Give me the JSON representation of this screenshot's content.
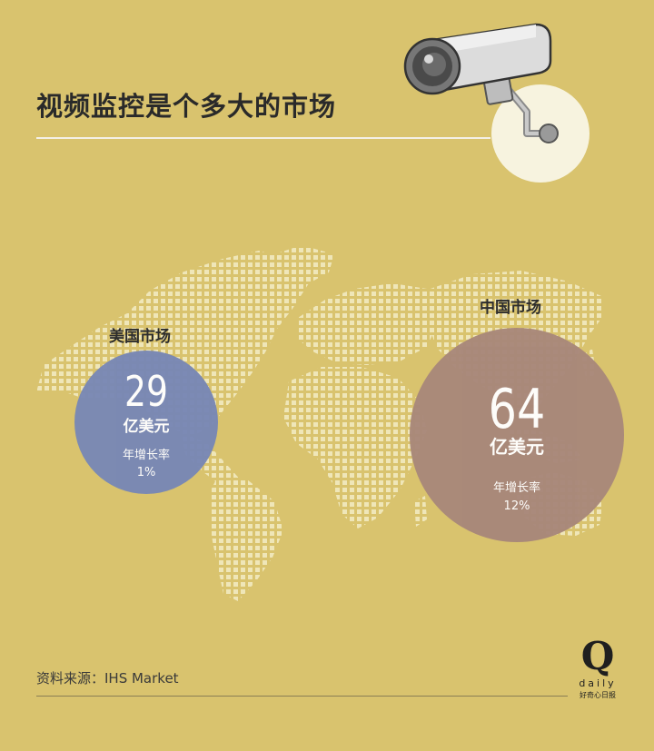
{
  "header": {
    "title": "视频监控是个多大的市场"
  },
  "markets": [
    {
      "id": "us",
      "region_label": "美国市场",
      "value": "29",
      "unit": "亿美元",
      "growth_label": "年增长率",
      "growth_rate": "1%",
      "color": "#7887b5"
    },
    {
      "id": "cn",
      "region_label": "中国市场",
      "value": "64",
      "unit": "亿美元",
      "growth_label": "年增长率",
      "growth_rate": "12%",
      "color": "#a8877a"
    }
  ],
  "footer": {
    "source": "资料来源：IHS Market",
    "logo_letter": "Q",
    "logo_word": "daily",
    "logo_sub": "好奇心日报"
  },
  "theme": {
    "background": "#d9c36e",
    "map_dots": "#efe6b8",
    "accent_light": "#f7f3df"
  }
}
